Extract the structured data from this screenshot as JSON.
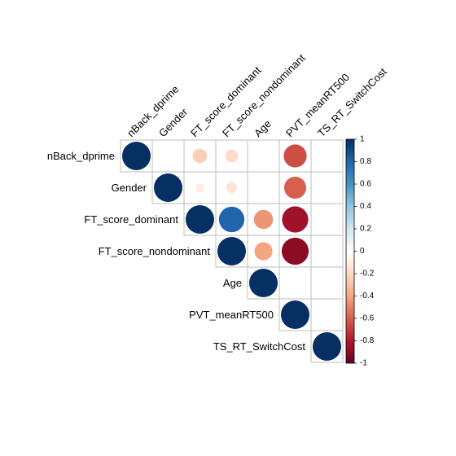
{
  "chart_data": {
    "type": "heatmap",
    "subtype": "correlation-matrix-circles-upper-triangle",
    "variables": [
      "nBack_dprime",
      "Gender",
      "FT_score_dominant",
      "FT_score_nondominant",
      "Age",
      "PVT_meanRT500",
      "TS_RT_SwitchCost"
    ],
    "matrix": [
      [
        1.0,
        null,
        -0.25,
        -0.2,
        null,
        -0.65,
        null
      ],
      [
        null,
        1.0,
        -0.1,
        -0.15,
        null,
        -0.6,
        null
      ],
      [
        null,
        null,
        1.0,
        0.8,
        -0.45,
        -0.85,
        null
      ],
      [
        null,
        null,
        null,
        1.0,
        -0.4,
        -0.9,
        null
      ],
      [
        null,
        null,
        null,
        null,
        1.0,
        null,
        null
      ],
      [
        null,
        null,
        null,
        null,
        null,
        1.0,
        null
      ],
      [
        null,
        null,
        null,
        null,
        null,
        null,
        1.0
      ]
    ],
    "colorbar": {
      "ticks": [
        "1",
        "0.8",
        "0.6",
        "0.4",
        "0.2",
        "0",
        "-0.2",
        "-0.4",
        "-0.6",
        "-0.8",
        "-1"
      ],
      "range": [
        -1,
        1
      ],
      "palette": [
        "#67001F",
        "#B2182B",
        "#D6604D",
        "#F4A582",
        "#FDDBC7",
        "#FFFFFF",
        "#D1E5F0",
        "#92C5DE",
        "#4393C3",
        "#2166AC",
        "#053061"
      ]
    }
  }
}
